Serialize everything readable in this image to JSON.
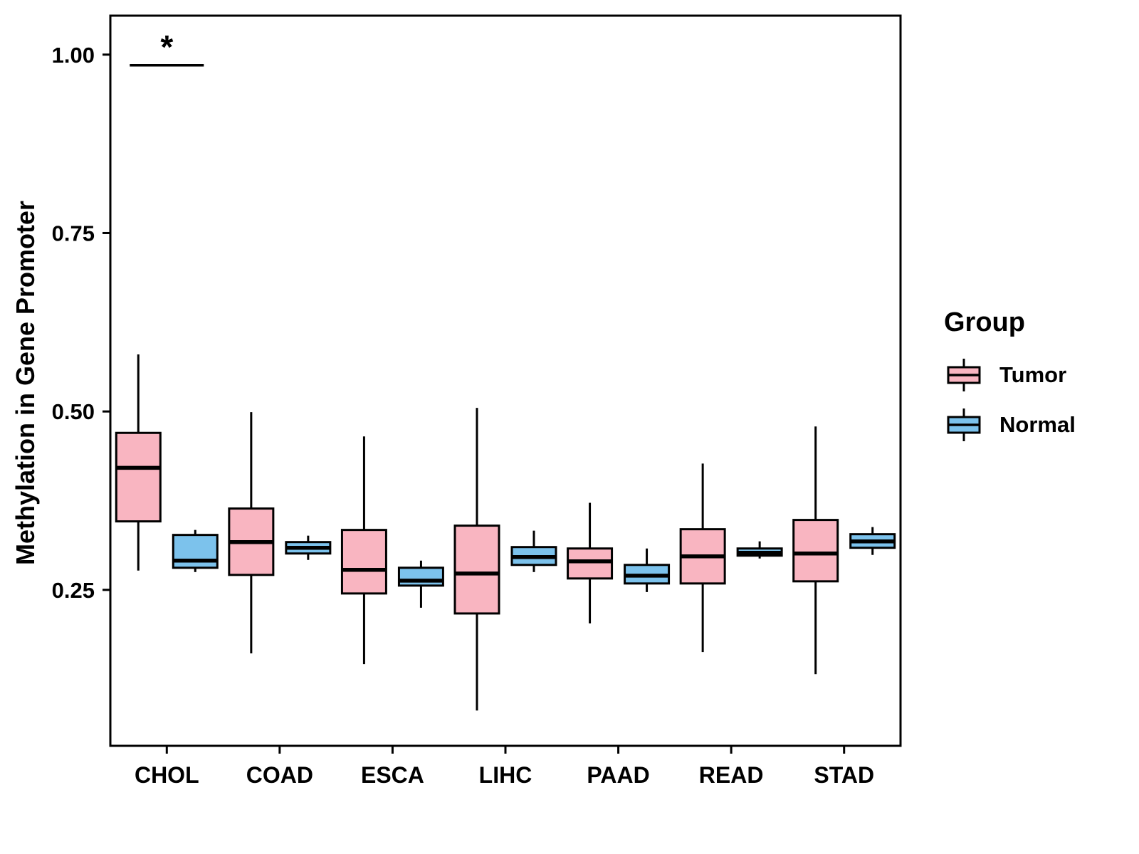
{
  "chart_data": {
    "type": "boxplot",
    "title": "",
    "xlabel": "",
    "ylabel": "Methylation in Gene Promoter",
    "categories": [
      "CHOL",
      "COAD",
      "ESCA",
      "LIHC",
      "PAAD",
      "READ",
      "STAD"
    ],
    "y_ticks": [
      0.25,
      0.5,
      0.75,
      1.0
    ],
    "ylim": [
      0.0315,
      1.0546
    ],
    "grid": false,
    "panel_border_color": "#000000",
    "series": [
      {
        "name": "Tumor",
        "color": "#F9B5C1",
        "boxes": [
          {
            "category": "CHOL",
            "low": 0.277,
            "q1": 0.346,
            "median": 0.421,
            "q3": 0.47,
            "high": 0.58
          },
          {
            "category": "COAD",
            "low": 0.161,
            "q1": 0.271,
            "median": 0.317,
            "q3": 0.364,
            "high": 0.499
          },
          {
            "category": "ESCA",
            "low": 0.146,
            "q1": 0.245,
            "median": 0.278,
            "q3": 0.334,
            "high": 0.465
          },
          {
            "category": "LIHC",
            "low": 0.081,
            "q1": 0.217,
            "median": 0.273,
            "q3": 0.34,
            "high": 0.505
          },
          {
            "category": "PAAD",
            "low": 0.203,
            "q1": 0.266,
            "median": 0.29,
            "q3": 0.308,
            "high": 0.372
          },
          {
            "category": "READ",
            "low": 0.163,
            "q1": 0.259,
            "median": 0.297,
            "q3": 0.335,
            "high": 0.427
          },
          {
            "category": "STAD",
            "low": 0.132,
            "q1": 0.262,
            "median": 0.301,
            "q3": 0.348,
            "high": 0.479
          }
        ]
      },
      {
        "name": "Normal",
        "color": "#7CC2EC",
        "boxes": [
          {
            "category": "CHOL",
            "low": 0.275,
            "q1": 0.281,
            "median": 0.291,
            "q3": 0.327,
            "high": 0.334
          },
          {
            "category": "COAD",
            "low": 0.292,
            "q1": 0.301,
            "median": 0.309,
            "q3": 0.317,
            "high": 0.326
          },
          {
            "category": "ESCA",
            "low": 0.225,
            "q1": 0.256,
            "median": 0.263,
            "q3": 0.281,
            "high": 0.291
          },
          {
            "category": "LIHC",
            "low": 0.275,
            "q1": 0.285,
            "median": 0.296,
            "q3": 0.31,
            "high": 0.333
          },
          {
            "category": "PAAD",
            "low": 0.247,
            "q1": 0.259,
            "median": 0.27,
            "q3": 0.285,
            "high": 0.308
          },
          {
            "category": "READ",
            "low": 0.294,
            "q1": 0.298,
            "median": 0.302,
            "q3": 0.308,
            "high": 0.318
          },
          {
            "category": "STAD",
            "low": 0.299,
            "q1": 0.309,
            "median": 0.318,
            "q3": 0.328,
            "high": 0.338
          }
        ]
      }
    ],
    "annotation": {
      "label": "*",
      "category": "CHOL",
      "y": 0.985
    },
    "legend": {
      "title": "Group",
      "position": "right",
      "entries": [
        "Tumor",
        "Normal"
      ]
    }
  }
}
